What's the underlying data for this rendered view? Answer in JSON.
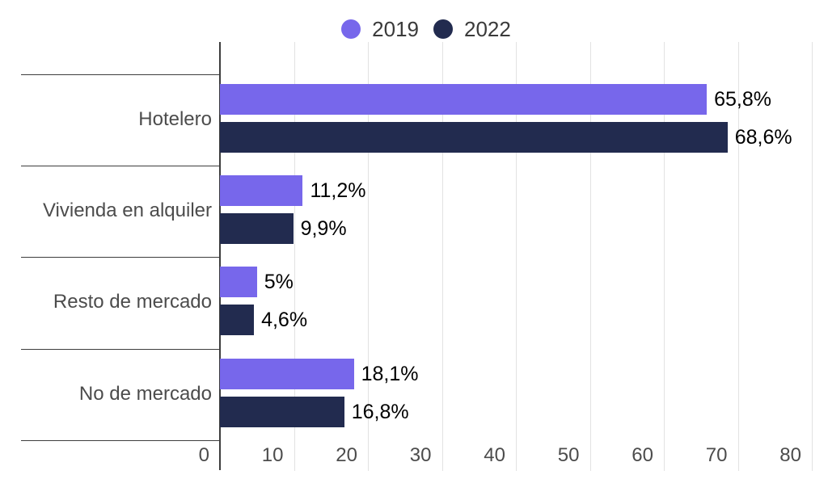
{
  "legend": {
    "items": [
      {
        "label": "2019",
        "color": "#7767EB"
      },
      {
        "label": "2022",
        "color": "#222B4F"
      }
    ]
  },
  "chart_data": {
    "type": "bar",
    "orientation": "horizontal",
    "title": "",
    "categories": [
      "Hotelero",
      "Vivienda en alquiler",
      "Resto de mercado",
      "No de mercado"
    ],
    "series": [
      {
        "name": "2019",
        "color": "#7767EB",
        "values": [
          65.8,
          11.2,
          5,
          18.1
        ],
        "labels": [
          "65,8%",
          "11,2%",
          "5%",
          "18,1%"
        ]
      },
      {
        "name": "2022",
        "color": "#222B4F",
        "values": [
          68.6,
          9.9,
          4.6,
          16.8
        ],
        "labels": [
          "68,6%",
          "9,9%",
          "4,6%",
          "16,8%"
        ]
      }
    ],
    "x_axis": {
      "ticks": [
        "0",
        "10",
        "20",
        "30",
        "40",
        "50",
        "60",
        "70",
        "80"
      ],
      "tick_values": [
        0,
        10,
        20,
        30,
        40,
        50,
        60,
        70,
        80
      ],
      "range": [
        0,
        82.2
      ]
    },
    "ylabel": "",
    "xlabel": "",
    "legend_position": "top",
    "grid": true,
    "colors": {
      "grid": "#e2e2e2",
      "axis": "#3d3d3d",
      "value_label": "#000000",
      "tick_label": "#4c4c4c",
      "category_label": "#4c4c4c"
    }
  }
}
